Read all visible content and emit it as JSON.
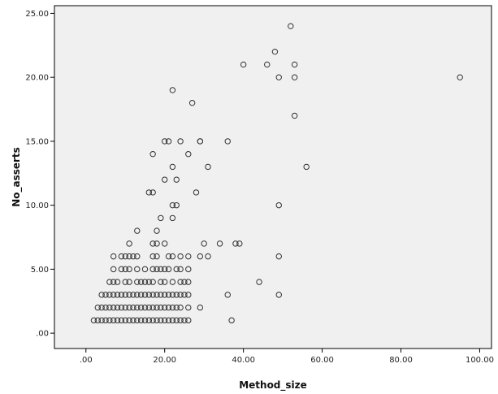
{
  "chart_data": {
    "type": "scatter",
    "title": "",
    "xlabel": "Method_size",
    "ylabel": "No_asserts",
    "xlim": [
      -8,
      103
    ],
    "ylim": [
      -1.2,
      25.6
    ],
    "x_ticks": [
      {
        "value": 0,
        "label": ".00"
      },
      {
        "value": 20,
        "label": "20.00"
      },
      {
        "value": 40,
        "label": "40.00"
      },
      {
        "value": 60,
        "label": "60.00"
      },
      {
        "value": 80,
        "label": "80.00"
      },
      {
        "value": 100,
        "label": "100.00"
      }
    ],
    "y_ticks": [
      {
        "value": 0,
        "label": ".00"
      },
      {
        "value": 5,
        "label": "5.00"
      },
      {
        "value": 10,
        "label": "10.00"
      },
      {
        "value": 15,
        "label": "15.00"
      },
      {
        "value": 20,
        "label": "20.00"
      },
      {
        "value": 25,
        "label": "25.00"
      }
    ],
    "grid": false,
    "colors": {
      "background": "#f0f0f0",
      "marker": "#333333",
      "axis": "#000000"
    },
    "points": [
      [
        2,
        1
      ],
      [
        3,
        1
      ],
      [
        4,
        1
      ],
      [
        5,
        1
      ],
      [
        6,
        1
      ],
      [
        7,
        1
      ],
      [
        8,
        1
      ],
      [
        9,
        1
      ],
      [
        10,
        1
      ],
      [
        11,
        1
      ],
      [
        12,
        1
      ],
      [
        13,
        1
      ],
      [
        14,
        1
      ],
      [
        15,
        1
      ],
      [
        16,
        1
      ],
      [
        17,
        1
      ],
      [
        18,
        1
      ],
      [
        19,
        1
      ],
      [
        20,
        1
      ],
      [
        21,
        1
      ],
      [
        22,
        1
      ],
      [
        23,
        1
      ],
      [
        24,
        1
      ],
      [
        25,
        1
      ],
      [
        26,
        1
      ],
      [
        37,
        1
      ],
      [
        3,
        2
      ],
      [
        4,
        2
      ],
      [
        5,
        2
      ],
      [
        6,
        2
      ],
      [
        7,
        2
      ],
      [
        8,
        2
      ],
      [
        9,
        2
      ],
      [
        10,
        2
      ],
      [
        11,
        2
      ],
      [
        12,
        2
      ],
      [
        13,
        2
      ],
      [
        14,
        2
      ],
      [
        15,
        2
      ],
      [
        16,
        2
      ],
      [
        17,
        2
      ],
      [
        18,
        2
      ],
      [
        19,
        2
      ],
      [
        20,
        2
      ],
      [
        21,
        2
      ],
      [
        22,
        2
      ],
      [
        23,
        2
      ],
      [
        24,
        2
      ],
      [
        26,
        2
      ],
      [
        29,
        2
      ],
      [
        4,
        3
      ],
      [
        5,
        3
      ],
      [
        6,
        3
      ],
      [
        7,
        3
      ],
      [
        8,
        3
      ],
      [
        9,
        3
      ],
      [
        10,
        3
      ],
      [
        11,
        3
      ],
      [
        12,
        3
      ],
      [
        13,
        3
      ],
      [
        14,
        3
      ],
      [
        15,
        3
      ],
      [
        16,
        3
      ],
      [
        17,
        3
      ],
      [
        18,
        3
      ],
      [
        19,
        3
      ],
      [
        20,
        3
      ],
      [
        21,
        3
      ],
      [
        22,
        3
      ],
      [
        23,
        3
      ],
      [
        24,
        3
      ],
      [
        25,
        3
      ],
      [
        26,
        3
      ],
      [
        36,
        3
      ],
      [
        49,
        3
      ],
      [
        6,
        4
      ],
      [
        7,
        4
      ],
      [
        8,
        4
      ],
      [
        10,
        4
      ],
      [
        11,
        4
      ],
      [
        13,
        4
      ],
      [
        14,
        4
      ],
      [
        15,
        4
      ],
      [
        16,
        4
      ],
      [
        17,
        4
      ],
      [
        19,
        4
      ],
      [
        20,
        4
      ],
      [
        22,
        4
      ],
      [
        24,
        4
      ],
      [
        25,
        4
      ],
      [
        26,
        4
      ],
      [
        44,
        4
      ],
      [
        7,
        5
      ],
      [
        9,
        5
      ],
      [
        10,
        5
      ],
      [
        11,
        5
      ],
      [
        13,
        5
      ],
      [
        15,
        5
      ],
      [
        17,
        5
      ],
      [
        18,
        5
      ],
      [
        19,
        5
      ],
      [
        20,
        5
      ],
      [
        21,
        5
      ],
      [
        23,
        5
      ],
      [
        24,
        5
      ],
      [
        26,
        5
      ],
      [
        7,
        6
      ],
      [
        9,
        6
      ],
      [
        10,
        6
      ],
      [
        11,
        6
      ],
      [
        12,
        6
      ],
      [
        13,
        6
      ],
      [
        17,
        6
      ],
      [
        18,
        6
      ],
      [
        21,
        6
      ],
      [
        22,
        6
      ],
      [
        24,
        6
      ],
      [
        26,
        6
      ],
      [
        29,
        6
      ],
      [
        31,
        6
      ],
      [
        49,
        6
      ],
      [
        11,
        7
      ],
      [
        17,
        7
      ],
      [
        18,
        7
      ],
      [
        20,
        7
      ],
      [
        30,
        7
      ],
      [
        34,
        7
      ],
      [
        38,
        7
      ],
      [
        39,
        7
      ],
      [
        13,
        8
      ],
      [
        18,
        8
      ],
      [
        19,
        9
      ],
      [
        22,
        9
      ],
      [
        22,
        10
      ],
      [
        23,
        10
      ],
      [
        49,
        10
      ],
      [
        16,
        11
      ],
      [
        17,
        11
      ],
      [
        28,
        11
      ],
      [
        20,
        12
      ],
      [
        23,
        12
      ],
      [
        22,
        13
      ],
      [
        31,
        13
      ],
      [
        56,
        13
      ],
      [
        17,
        14
      ],
      [
        26,
        14
      ],
      [
        20,
        15
      ],
      [
        21,
        15
      ],
      [
        24,
        15
      ],
      [
        29,
        15
      ],
      [
        29,
        15
      ],
      [
        36,
        15
      ],
      [
        53,
        17
      ],
      [
        22,
        19
      ],
      [
        27,
        18
      ],
      [
        40,
        21
      ],
      [
        46,
        21
      ],
      [
        53,
        21
      ],
      [
        49,
        20
      ],
      [
        53,
        20
      ],
      [
        48,
        22
      ],
      [
        52,
        24
      ],
      [
        95,
        20
      ]
    ]
  }
}
